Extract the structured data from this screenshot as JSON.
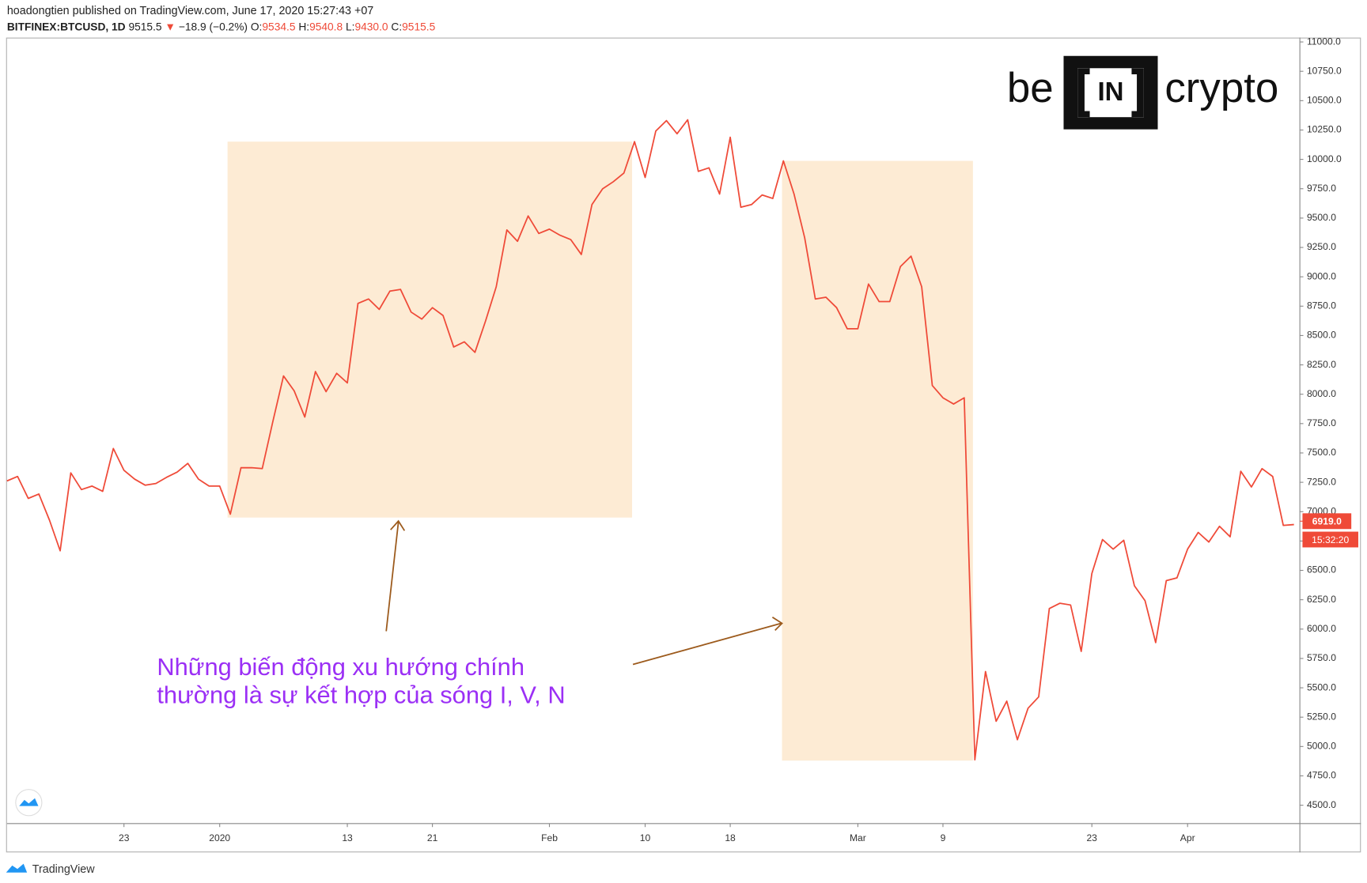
{
  "header": {
    "publisher": "hoadongtien published on TradingView.com, June 17, 2020 15:27:43 +07",
    "symbol": "BITFINEX:BTCUSD, 1D",
    "last": "9515.5",
    "arrow": "▼",
    "change": "−18.9 (−0.2%)",
    "o_label": "O:",
    "o": "9534.5",
    "h_label": "H:",
    "h": "9540.8",
    "l_label": "L:",
    "l": "9430.0",
    "c_label": "C:",
    "c": "9515.5"
  },
  "logo": {
    "left": "be",
    "middle": "IN",
    "right": "crypto"
  },
  "footer": "TradingView",
  "chart_data": {
    "type": "line",
    "annotation": [
      "Những biến động xu hướng chính",
      "thường là sự kết hợp của sóng I, V, N"
    ],
    "categories": [
      null,
      null,
      null,
      null,
      null,
      null,
      null,
      null,
      null,
      null,
      null,
      "23",
      null,
      null,
      null,
      null,
      null,
      null,
      null,
      null,
      "2020",
      null,
      null,
      null,
      null,
      null,
      null,
      null,
      null,
      null,
      null,
      null,
      "13",
      null,
      null,
      null,
      null,
      null,
      null,
      null,
      "21",
      null,
      null,
      null,
      null,
      null,
      null,
      null,
      null,
      null,
      null,
      "Feb",
      null,
      null,
      null,
      null,
      null,
      null,
      null,
      null,
      "10",
      null,
      null,
      null,
      null,
      null,
      null,
      null,
      "18",
      null,
      null,
      null,
      null,
      null,
      null,
      null,
      null,
      null,
      null,
      null,
      "Mar",
      null,
      null,
      null,
      null,
      null,
      null,
      null,
      "9",
      null,
      null,
      null,
      null,
      null,
      null,
      null,
      null,
      null,
      null,
      null,
      null,
      null,
      "23",
      null,
      null,
      null,
      null,
      null,
      null,
      null,
      null,
      "Apr",
      null,
      null,
      null,
      null,
      null,
      null,
      null,
      null,
      null,
      null
    ],
    "series": [
      {
        "name": "BITFINEX:BTCUSD",
        "color": "#ef4a38",
        "values": [
          7262,
          7300,
          7113,
          7150,
          6927,
          6667,
          7330,
          7188,
          7218,
          7173,
          7538,
          7352,
          7277,
          7225,
          7240,
          7292,
          7337,
          7411,
          7277,
          7218,
          7218,
          6979,
          7374,
          7374,
          7367,
          7769,
          8156,
          8029,
          7806,
          8193,
          8022,
          8178,
          8096,
          8774,
          8811,
          8722,
          8878,
          8893,
          8699,
          8640,
          8737,
          8670,
          8402,
          8446,
          8357,
          8625,
          8915,
          9399,
          9302,
          9518,
          9369,
          9406,
          9354,
          9317,
          9190,
          9615,
          9749,
          9809,
          9883,
          10151,
          9846,
          10241,
          10330,
          10218,
          10337,
          9898,
          9928,
          9704,
          10188,
          9593,
          9615,
          9697,
          9667,
          9987,
          9704,
          9332,
          8811,
          8826,
          8737,
          8558,
          8558,
          8938,
          8789,
          8789,
          9087,
          9176,
          8915,
          8074,
          7970,
          7917,
          7970,
          4887,
          5639,
          5215,
          5386,
          5058,
          5326,
          5423,
          6175,
          6220,
          6205,
          5810,
          6473,
          6763,
          6681,
          6756,
          6369,
          6242,
          5885,
          6413,
          6436,
          6681,
          6823,
          6741,
          6875,
          6786,
          7344,
          7210,
          7367,
          7300,
          6883,
          6890
        ]
      }
    ],
    "ylim": [
      4344,
      11037
    ],
    "yticks": [
      {
        "value": 4500,
        "label": "4500.0"
      },
      {
        "value": 4750,
        "label": "4750.0"
      },
      {
        "value": 5000,
        "label": "5000.0"
      },
      {
        "value": 5250,
        "label": "5250.0"
      },
      {
        "value": 5500,
        "label": "5500.0"
      },
      {
        "value": 5750,
        "label": "5750.0"
      },
      {
        "value": 6000,
        "label": "6000.0"
      },
      {
        "value": 6250,
        "label": "6250.0"
      },
      {
        "value": 6500,
        "label": "6500.0"
      },
      {
        "value": 6750,
        "label": "6750.0"
      },
      {
        "value": 7000,
        "label": "7000.0"
      },
      {
        "value": 7250,
        "label": "7250.0"
      },
      {
        "value": 7500,
        "label": "7500.0"
      },
      {
        "value": 7750,
        "label": "7750.0"
      },
      {
        "value": 8000,
        "label": "8000.0"
      },
      {
        "value": 8250,
        "label": "8250.0"
      },
      {
        "value": 8500,
        "label": "8500.0"
      },
      {
        "value": 8750,
        "label": "8750.0"
      },
      {
        "value": 9000,
        "label": "9000.0"
      },
      {
        "value": 9250,
        "label": "9250.0"
      },
      {
        "value": 9500,
        "label": "9500.0"
      },
      {
        "value": 9750,
        "label": "9750.0"
      },
      {
        "value": 10000,
        "label": "10000.0"
      },
      {
        "value": 10250,
        "label": "10250.0"
      },
      {
        "value": 10500,
        "label": "10500.0"
      },
      {
        "value": 10750,
        "label": "10750.0"
      },
      {
        "value": 11000,
        "label": "11000.0"
      }
    ],
    "price_label": {
      "value": 6919,
      "label": "6919.0"
    },
    "countdown": "15:32:20",
    "grid": false
  }
}
